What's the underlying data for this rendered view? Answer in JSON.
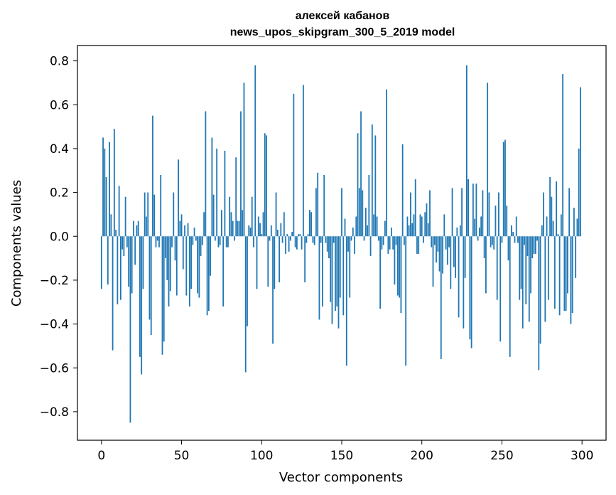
{
  "chart_data": {
    "type": "bar",
    "title": "алексей кабанов",
    "subtitle": "news_upos_skipgram_300_5_2019 model",
    "xlabel": "Vector components",
    "ylabel": "Components values",
    "xlim": [
      -15,
      315
    ],
    "ylim": [
      -0.93,
      0.87
    ],
    "xticks": [
      0,
      50,
      100,
      150,
      200,
      250,
      300
    ],
    "xtick_labels": [
      "0",
      "50",
      "100",
      "150",
      "200",
      "250",
      "300"
    ],
    "yticks": [
      -0.8,
      -0.6,
      -0.4,
      -0.2,
      0.0,
      0.2,
      0.4,
      0.6,
      0.8
    ],
    "ytick_labels": [
      "−0.8",
      "−0.6",
      "−0.4",
      "−0.2",
      "0.0",
      "0.2",
      "0.4",
      "0.6",
      "0.8"
    ],
    "bar_color": "#1f77b4",
    "x": [
      0,
      1,
      2,
      3,
      4,
      5,
      6,
      7,
      8,
      9,
      10,
      11,
      12,
      13,
      14,
      15,
      16,
      17,
      18,
      19,
      20,
      21,
      22,
      23,
      24,
      25,
      26,
      27,
      28,
      29,
      30,
      31,
      32,
      33,
      34,
      35,
      36,
      37,
      38,
      39,
      40,
      41,
      42,
      43,
      44,
      45,
      46,
      47,
      48,
      49,
      50,
      51,
      52,
      53,
      54,
      55,
      56,
      57,
      58,
      59,
      60,
      61,
      62,
      63,
      64,
      65,
      66,
      67,
      68,
      69,
      70,
      71,
      72,
      73,
      74,
      75,
      76,
      77,
      78,
      79,
      80,
      81,
      82,
      83,
      84,
      85,
      86,
      87,
      88,
      89,
      90,
      91,
      92,
      93,
      94,
      95,
      96,
      97,
      98,
      99,
      100,
      101,
      102,
      103,
      104,
      105,
      106,
      107,
      108,
      109,
      110,
      111,
      112,
      113,
      114,
      115,
      116,
      117,
      118,
      119,
      120,
      121,
      122,
      123,
      124,
      125,
      126,
      127,
      128,
      129,
      130,
      131,
      132,
      133,
      134,
      135,
      136,
      137,
      138,
      139,
      140,
      141,
      142,
      143,
      144,
      145,
      146,
      147,
      148,
      149,
      150,
      151,
      152,
      153,
      154,
      155,
      156,
      157,
      158,
      159,
      160,
      161,
      162,
      163,
      164,
      165,
      166,
      167,
      168,
      169,
      170,
      171,
      172,
      173,
      174,
      175,
      176,
      177,
      178,
      179,
      180,
      181,
      182,
      183,
      184,
      185,
      186,
      187,
      188,
      189,
      190,
      191,
      192,
      193,
      194,
      195,
      196,
      197,
      198,
      199,
      200,
      201,
      202,
      203,
      204,
      205,
      206,
      207,
      208,
      209,
      210,
      211,
      212,
      213,
      214,
      215,
      216,
      217,
      218,
      219,
      220,
      221,
      222,
      223,
      224,
      225,
      226,
      227,
      228,
      229,
      230,
      231,
      232,
      233,
      234,
      235,
      236,
      237,
      238,
      239,
      240,
      241,
      242,
      243,
      244,
      245,
      246,
      247,
      248,
      249,
      250,
      251,
      252,
      253,
      254,
      255,
      256,
      257,
      258,
      259,
      260,
      261,
      262,
      263,
      264,
      265,
      266,
      267,
      268,
      269,
      270,
      271,
      272,
      273,
      274,
      275,
      276,
      277,
      278,
      279,
      280,
      281,
      282,
      283,
      284,
      285,
      286,
      287,
      288,
      289,
      290,
      291,
      292,
      293,
      294,
      295,
      296,
      297,
      298,
      299
    ],
    "values": [
      -0.24,
      0.45,
      0.4,
      0.27,
      -0.22,
      0.43,
      0.1,
      -0.52,
      0.49,
      0.03,
      -0.31,
      0.23,
      -0.29,
      -0.06,
      -0.09,
      0.18,
      -0.05,
      -0.23,
      -0.85,
      -0.26,
      0.07,
      -0.13,
      0.05,
      0.07,
      -0.55,
      -0.63,
      -0.24,
      0.2,
      0.09,
      0.2,
      -0.38,
      -0.45,
      0.55,
      0.19,
      -0.05,
      -0.02,
      -0.05,
      0.28,
      -0.54,
      -0.48,
      -0.1,
      -0.2,
      -0.32,
      -0.25,
      -0.05,
      0.2,
      -0.11,
      -0.27,
      0.35,
      0.07,
      0.1,
      -0.15,
      0.05,
      -0.27,
      0.06,
      -0.32,
      -0.24,
      -0.04,
      0.04,
      -0.02,
      -0.26,
      -0.28,
      -0.09,
      -0.04,
      0.11,
      0.57,
      -0.36,
      -0.34,
      -0.18,
      0.45,
      0.19,
      -0.02,
      0.4,
      -0.05,
      -0.04,
      0.12,
      -0.32,
      0.39,
      -0.05,
      -0.05,
      0.18,
      0.11,
      0.07,
      -0.02,
      0.36,
      0.07,
      0.07,
      0.57,
      0.12,
      0.7,
      -0.62,
      -0.41,
      0.05,
      0.04,
      0.18,
      -0.05,
      0.78,
      -0.24,
      0.09,
      0.06,
      0.01,
      0.11,
      0.47,
      0.46,
      -0.23,
      -0.02,
      0.05,
      -0.49,
      -0.24,
      0.2,
      0.03,
      -0.21,
      0.06,
      -0.03,
      0.11,
      -0.08,
      0.01,
      -0.07,
      -0.02,
      0.02,
      0.65,
      -0.05,
      -0.06,
      0.01,
      0.01,
      -0.06,
      0.69,
      -0.21,
      -0.03,
      0.01,
      0.12,
      0.11,
      -0.03,
      -0.04,
      0.22,
      0.29,
      -0.38,
      -0.03,
      -0.32,
      0.28,
      -0.03,
      -0.07,
      -0.1,
      -0.3,
      -0.4,
      -0.03,
      -0.34,
      -0.32,
      -0.42,
      -0.28,
      0.22,
      -0.36,
      0.08,
      -0.59,
      -0.07,
      -0.28,
      -0.02,
      0.04,
      -0.08,
      0.09,
      0.47,
      0.22,
      0.57,
      0.21,
      -0.02,
      0.13,
      0.05,
      0.28,
      -0.09,
      0.51,
      0.1,
      0.46,
      0.09,
      -0.02,
      -0.33,
      -0.06,
      -0.04,
      0.07,
      0.67,
      -0.08,
      -0.06,
      0.04,
      -0.06,
      -0.22,
      -0.04,
      -0.27,
      -0.28,
      -0.35,
      0.42,
      -0.04,
      -0.59,
      0.09,
      0.05,
      0.2,
      0.06,
      0.1,
      0.26,
      -0.08,
      -0.08,
      0.1,
      0.09,
      -0.03,
      0.11,
      0.15,
      0.06,
      0.21,
      -0.05,
      -0.23,
      -0.04,
      -0.12,
      -0.07,
      -0.16,
      -0.56,
      -0.17,
      0.1,
      -0.06,
      -0.13,
      -0.05,
      -0.24,
      0.22,
      -0.14,
      -0.19,
      0.04,
      -0.37,
      0.05,
      0.22,
      -0.42,
      -0.19,
      0.78,
      0.26,
      -0.47,
      -0.51,
      0.24,
      0.08,
      0.24,
      -0.02,
      0.04,
      0.09,
      0.21,
      -0.1,
      -0.26,
      0.7,
      0.2,
      -0.05,
      -0.04,
      -0.06,
      0.14,
      -0.29,
      0.2,
      -0.48,
      -0.03,
      0.43,
      0.44,
      0.14,
      -0.11,
      -0.55,
      0.05,
      0.02,
      -0.03,
      0.09,
      -0.03,
      -0.29,
      -0.24,
      -0.42,
      -0.04,
      -0.31,
      -0.09,
      -0.39,
      -0.26,
      -0.1,
      -0.08,
      -0.08,
      -0.02,
      -0.61,
      -0.49,
      0.05,
      0.2,
      -0.39,
      0.09,
      -0.29,
      0.27,
      0.18,
      0.07,
      -0.33,
      0.25,
      0.01,
      -0.36,
      0.1,
      0.74,
      -0.34,
      -0.34,
      -0.26,
      0.22,
      -0.4,
      -0.35,
      0.13,
      -0.19,
      0.08,
      0.4,
      0.68
    ]
  }
}
